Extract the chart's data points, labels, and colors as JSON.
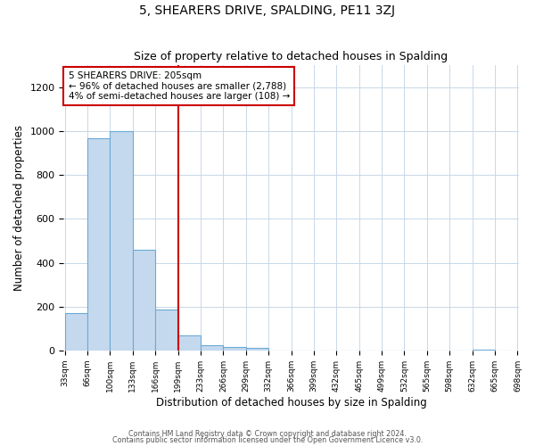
{
  "title": "5, SHEARERS DRIVE, SPALDING, PE11 3ZJ",
  "subtitle": "Size of property relative to detached houses in Spalding",
  "xlabel": "Distribution of detached houses by size in Spalding",
  "ylabel": "Number of detached properties",
  "bar_values": [
    170,
    970,
    1000,
    460,
    185,
    70,
    25,
    15,
    10,
    0,
    0,
    0,
    0,
    0,
    0,
    0,
    0,
    0,
    5,
    0
  ],
  "bin_edges": [
    33,
    66,
    100,
    133,
    166,
    199,
    233,
    266,
    299,
    332,
    366,
    399,
    432,
    465,
    499,
    532,
    565,
    598,
    632,
    665,
    698
  ],
  "bin_labels": [
    "33sqm",
    "66sqm",
    "100sqm",
    "133sqm",
    "166sqm",
    "199sqm",
    "233sqm",
    "266sqm",
    "299sqm",
    "332sqm",
    "366sqm",
    "399sqm",
    "432sqm",
    "465sqm",
    "499sqm",
    "532sqm",
    "565sqm",
    "598sqm",
    "632sqm",
    "665sqm",
    "698sqm"
  ],
  "bar_color": "#c5d9ee",
  "bar_edge_color": "#6aaad4",
  "vline_x_index": 5,
  "vline_color": "#cc0000",
  "annotation_line1": "5 SHEARERS DRIVE: 205sqm",
  "annotation_line2": "← 96% of detached houses are smaller (2,788)",
  "annotation_line3": "4% of semi-detached houses are larger (108) →",
  "annotation_box_color": "#ffffff",
  "annotation_box_edge": "#cc0000",
  "ylim": [
    0,
    1300
  ],
  "yticks": [
    0,
    200,
    400,
    600,
    800,
    1000,
    1200
  ],
  "footer1": "Contains HM Land Registry data © Crown copyright and database right 2024.",
  "footer2": "Contains public sector information licensed under the Open Government Licence v3.0.",
  "bg_color": "#ffffff",
  "grid_color": "#c8d8e8"
}
